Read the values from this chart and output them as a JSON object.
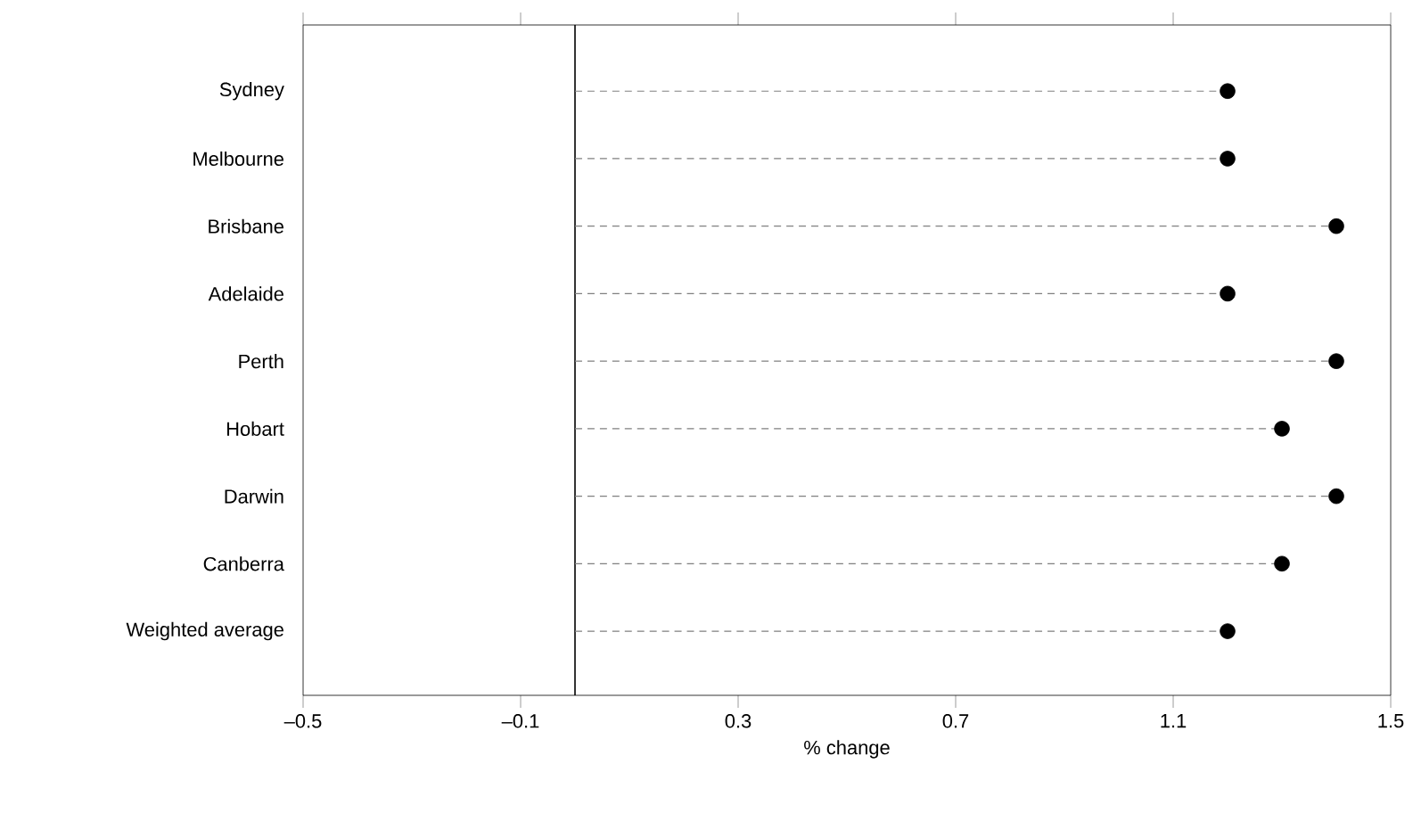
{
  "chart_data": {
    "type": "lollipop",
    "orientation": "horizontal",
    "xlabel": "% change",
    "categories": [
      "Sydney",
      "Melbourne",
      "Brisbane",
      "Adelaide",
      "Perth",
      "Hobart",
      "Darwin",
      "Canberra",
      "Weighted average"
    ],
    "values": [
      1.2,
      1.2,
      1.4,
      1.2,
      1.4,
      1.3,
      1.4,
      1.3,
      1.2
    ],
    "color": "#000000",
    "marker": "circle",
    "line_style": "dashed",
    "xlim": [
      -0.5,
      1.5
    ],
    "xticks": [
      {
        "value": -0.5,
        "label": "–0.5"
      },
      {
        "value": -0.1,
        "label": "–0.1"
      },
      {
        "value": 0.3,
        "label": "0.3"
      },
      {
        "value": 0.7,
        "label": "0.7"
      },
      {
        "value": 1.1,
        "label": "1.1"
      },
      {
        "value": 1.5,
        "label": "1.5"
      }
    ],
    "ref_lines": [
      {
        "axis": "x",
        "value": 0
      }
    ]
  }
}
